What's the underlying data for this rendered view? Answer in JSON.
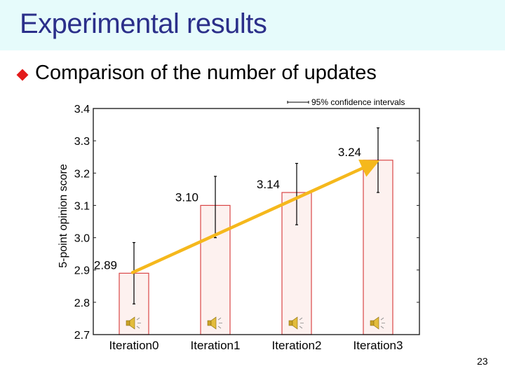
{
  "slide": {
    "title": "Experimental results",
    "bullet": "Comparison of the number of updates",
    "page_number": "23",
    "colors": {
      "title_band": "#e6fbfb",
      "title_text": "#2b2f8a",
      "bullet": "#e31b1b",
      "bar_fill": "#fdf1ef",
      "bar_stroke": "#d94545",
      "arrow": "#f5b81c"
    }
  },
  "chart_data": {
    "type": "bar",
    "title": "",
    "xlabel": "",
    "ylabel": "5-point opinion score",
    "categories": [
      "Iteration0",
      "Iteration1",
      "Iteration2",
      "Iteration3"
    ],
    "values": [
      2.89,
      3.1,
      3.14,
      3.24
    ],
    "value_labels": [
      "2.89",
      "3.10",
      "3.14",
      "3.24"
    ],
    "error_bars": {
      "label": "95% confidence intervals",
      "lower": [
        2.795,
        3.0,
        3.04,
        3.14
      ],
      "upper": [
        2.985,
        3.19,
        3.23,
        3.34
      ]
    },
    "ylim": [
      2.7,
      3.4
    ],
    "yticks": [
      "2.7",
      "2.8",
      "2.9",
      "3.0",
      "3.1",
      "3.2",
      "3.3",
      "3.4"
    ],
    "grid": false,
    "legend_position": "top-right",
    "annotations": [
      {
        "type": "arrow",
        "from": "Iteration0 (2.89)",
        "to": "Iteration3 (3.24)",
        "color": "#f5b81c"
      },
      {
        "type": "speaker-icon",
        "count": 4,
        "position": "bottom of each bar"
      }
    ]
  }
}
